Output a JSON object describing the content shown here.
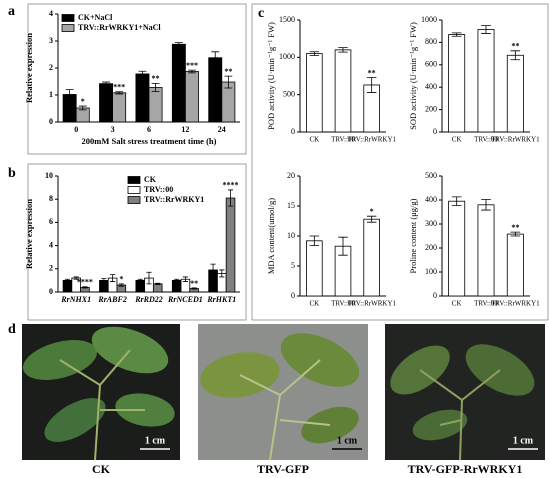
{
  "panels": [
    "a",
    "b",
    "c",
    "d"
  ],
  "chart_data": [
    {
      "type": "bar",
      "ylabel": "Relative expression",
      "xlabel": "200mM Salt stress treatment time (h)",
      "categories": [
        "0",
        "3",
        "6",
        "12",
        "24"
      ],
      "ylim": [
        0,
        4
      ],
      "yticks": [
        0,
        1,
        2,
        3,
        4
      ],
      "legend": "upper left",
      "series": [
        {
          "name": "CK+NaCl",
          "color": "#000000",
          "values": [
            1.02,
            1.42,
            1.78,
            2.88,
            2.38
          ],
          "errors": [
            0.18,
            0.06,
            0.1,
            0.06,
            0.22
          ]
        },
        {
          "name": "TRV::RrWRKY1+NaCl",
          "color": "#a6a6a6",
          "values": [
            0.52,
            1.08,
            1.28,
            1.87,
            1.48
          ],
          "errors": [
            0.07,
            0.04,
            0.15,
            0.05,
            0.22
          ],
          "significance": [
            "*",
            "***",
            "**",
            "***",
            "**"
          ]
        }
      ]
    },
    {
      "type": "bar",
      "ylabel": "Relative expression",
      "categories": [
        "RrNHX1",
        "RrABF2",
        "RrRD22",
        "RrNCED1",
        "RrHKT1"
      ],
      "ylim": [
        0,
        10
      ],
      "yticks": [
        0,
        2,
        4,
        6,
        8,
        10
      ],
      "legend": "upper left",
      "series": [
        {
          "name": "CK",
          "color": "#000000",
          "values": [
            1.0,
            1.0,
            1.0,
            1.0,
            1.9
          ],
          "errors": [
            0.1,
            0.15,
            0.1,
            0.1,
            0.5
          ]
        },
        {
          "name": "TRV::00",
          "color": "#ffffff",
          "values": [
            1.2,
            1.2,
            1.2,
            1.1,
            1.6
          ],
          "errors": [
            0.1,
            0.3,
            0.5,
            0.2,
            0.3
          ]
        },
        {
          "name": "TRV::RrWRKY1",
          "color": "#808080",
          "values": [
            0.4,
            0.6,
            0.7,
            0.3,
            8.1
          ],
          "errors": [
            0.05,
            0.1,
            0.05,
            0.05,
            0.7
          ],
          "significance": [
            "****",
            "*",
            null,
            "**",
            "****"
          ]
        }
      ]
    },
    {
      "type": "bar",
      "ylabel": "POD activity (U·min⁻¹g⁻¹ FW)",
      "categories": [
        "CK",
        "TRV::00",
        "TRV::RrWRKY1"
      ],
      "ylim": [
        0,
        1500
      ],
      "yticks": [
        0,
        500,
        1000,
        1500
      ],
      "color": "#ffffff",
      "values": [
        1050,
        1100,
        630
      ],
      "errors": [
        25,
        30,
        100
      ],
      "significance": [
        null,
        null,
        "**"
      ]
    },
    {
      "type": "bar",
      "ylabel": "SOD activity (U·min⁻¹g⁻¹ FW)",
      "categories": [
        "CK",
        "TRV::00",
        "TRV::RrWRKY1"
      ],
      "ylim": [
        0,
        1000
      ],
      "yticks": [
        0,
        200,
        400,
        600,
        800,
        1000
      ],
      "color": "#ffffff",
      "values": [
        870,
        915,
        685
      ],
      "errors": [
        15,
        35,
        40
      ],
      "significance": [
        null,
        null,
        "**"
      ]
    },
    {
      "type": "bar",
      "ylabel": "MDA content(umol/g)",
      "categories": [
        "CK",
        "TRV::00",
        "TRV::RrWRKY1"
      ],
      "ylim": [
        0,
        20
      ],
      "yticks": [
        0,
        5,
        10,
        15,
        20
      ],
      "color": "#ffffff",
      "values": [
        9.2,
        8.3,
        12.8
      ],
      "errors": [
        0.8,
        1.5,
        0.5
      ],
      "significance": [
        null,
        null,
        "*"
      ]
    },
    {
      "type": "bar",
      "ylabel": "Proline content (μg/g)",
      "categories": [
        "CK",
        "TRV::00",
        "TRV::RrWRKY1"
      ],
      "ylim": [
        0,
        500
      ],
      "yticks": [
        0,
        100,
        200,
        300,
        400,
        500
      ],
      "color": "#ffffff",
      "values": [
        395,
        380,
        258
      ],
      "errors": [
        18,
        22,
        8
      ],
      "significance": [
        null,
        null,
        "**"
      ]
    }
  ],
  "photos": {
    "scale_bars": [
      "1 cm",
      "1 cm",
      "1 cm"
    ],
    "labels": [
      "CK",
      "TRV-GFP",
      "TRV-GFP-RrWRKY1"
    ]
  }
}
